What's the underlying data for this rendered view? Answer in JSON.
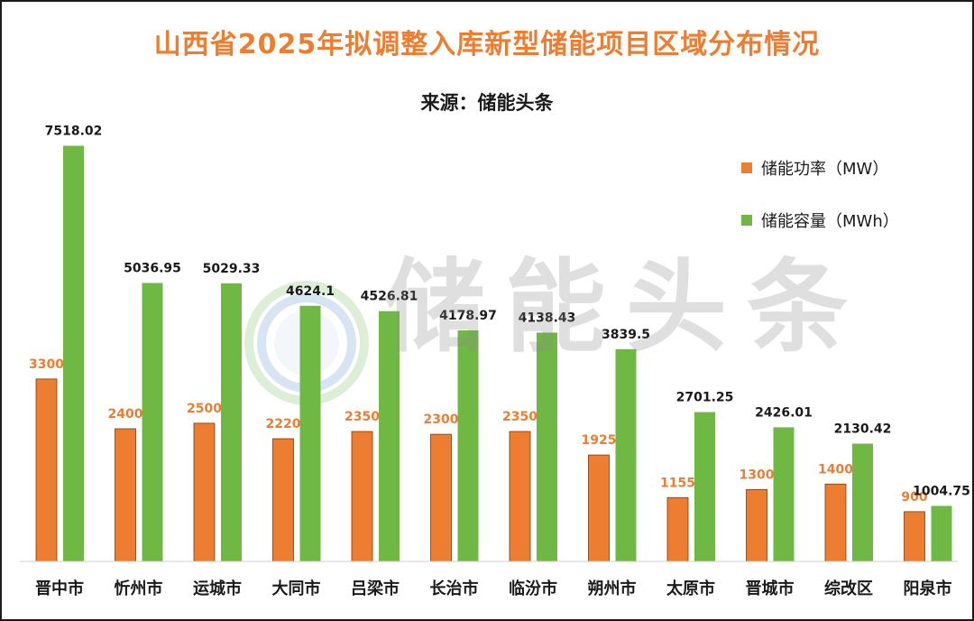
{
  "title": "山西省2025年拟调整入库新型储能项目区域分布情况",
  "subtitle": "来源：储能头条",
  "watermark": "储能头条",
  "colors": {
    "power": "#ED7D31",
    "capacity": "#70B844",
    "title": "#ED7D31",
    "text": "#1a1a1a"
  },
  "chart_data": {
    "type": "bar",
    "title": "山西省2025年拟调整入库新型储能项目区域分布情况",
    "subtitle": "来源：储能头条",
    "xlabel": "",
    "ylabel": "",
    "ylim": [
      0,
      8000
    ],
    "grid": false,
    "legend_position": "top-right",
    "categories": [
      "晋中市",
      "忻州市",
      "运城市",
      "大同市",
      "吕梁市",
      "长治市",
      "临汾市",
      "朔州市",
      "太原市",
      "晋城市",
      "综改区",
      "阳泉市"
    ],
    "series": [
      {
        "name": "储能功率（MW）",
        "color": "#ED7D31",
        "values": [
          3300,
          2400,
          2500,
          2220,
          2350,
          2300,
          2350,
          1925,
          1155,
          1300,
          1400,
          900
        ]
      },
      {
        "name": "储能容量（MWh）",
        "color": "#70B844",
        "values": [
          7518.02,
          5036.95,
          5029.33,
          4624.1,
          4526.81,
          4178.97,
          4138.43,
          3839.5,
          2701.25,
          2426.01,
          2130.42,
          1004.75
        ]
      }
    ]
  }
}
